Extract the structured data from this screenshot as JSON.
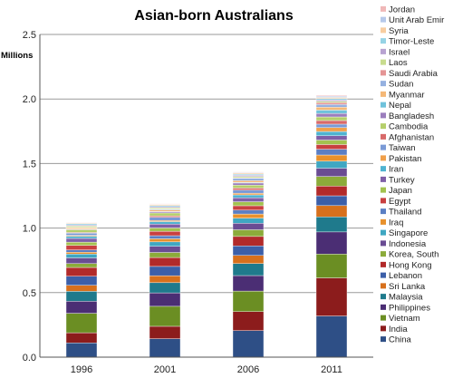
{
  "chart_data": {
    "type": "bar",
    "stacked": true,
    "title": "Asian-born Australians",
    "ylabel": "Millions",
    "xlabel": "",
    "ylim": [
      0,
      2.5
    ],
    "yticks": [
      "0.0",
      "0.5",
      "1.0",
      "1.5",
      "2.0",
      "2.5"
    ],
    "grid": true,
    "legend_position": "right",
    "categories": [
      "1996",
      "2001",
      "2006",
      "2011"
    ],
    "series": [
      {
        "name": "China",
        "color": "#2e4f86",
        "values": [
          0.111,
          0.143,
          0.206,
          0.319
        ]
      },
      {
        "name": "India",
        "color": "#8c1c1c",
        "values": [
          0.078,
          0.096,
          0.147,
          0.295
        ]
      },
      {
        "name": "Vietnam",
        "color": "#6b8e23",
        "values": [
          0.151,
          0.155,
          0.159,
          0.185
        ]
      },
      {
        "name": "Philippines",
        "color": "#4b2e74",
        "values": [
          0.093,
          0.104,
          0.12,
          0.171
        ]
      },
      {
        "name": "Malaysia",
        "color": "#1f7a8c",
        "values": [
          0.077,
          0.079,
          0.093,
          0.117
        ]
      },
      {
        "name": "Sri Lanka",
        "color": "#d7701c",
        "values": [
          0.047,
          0.054,
          0.063,
          0.087
        ]
      },
      {
        "name": "Lebanon",
        "color": "#3c5fa8",
        "values": [
          0.07,
          0.072,
          0.074,
          0.076
        ]
      },
      {
        "name": "Hong Kong",
        "color": "#b22a2a",
        "values": [
          0.068,
          0.069,
          0.073,
          0.075
        ]
      },
      {
        "name": "Korea, South",
        "color": "#8cab3a",
        "values": [
          0.03,
          0.039,
          0.052,
          0.075
        ]
      },
      {
        "name": "Indonesia",
        "color": "#6a4c93",
        "values": [
          0.044,
          0.048,
          0.05,
          0.064
        ]
      },
      {
        "name": "Singapore",
        "color": "#3fa7c2",
        "values": [
          0.03,
          0.034,
          0.04,
          0.054
        ]
      },
      {
        "name": "Iraq",
        "color": "#e8912c",
        "values": [
          0.014,
          0.024,
          0.032,
          0.048
        ]
      },
      {
        "name": "Thailand",
        "color": "#5b7fc4",
        "values": [
          0.018,
          0.024,
          0.03,
          0.045
        ]
      },
      {
        "name": "Egypt",
        "color": "#c94040",
        "values": [
          0.035,
          0.034,
          0.034,
          0.036
        ]
      },
      {
        "name": "Japan",
        "color": "#a3c24f",
        "values": [
          0.025,
          0.026,
          0.031,
          0.035
        ]
      },
      {
        "name": "Turkey",
        "color": "#7f5fa8",
        "values": [
          0.029,
          0.03,
          0.031,
          0.033
        ]
      },
      {
        "name": "Iran",
        "color": "#4fb3d1",
        "values": [
          0.017,
          0.019,
          0.022,
          0.033
        ]
      },
      {
        "name": "Pakistan",
        "color": "#f0a04b",
        "values": [
          0.007,
          0.009,
          0.013,
          0.03
        ]
      },
      {
        "name": "Taiwan",
        "color": "#7a9ad6",
        "values": [
          0.017,
          0.025,
          0.024,
          0.027
        ]
      },
      {
        "name": "Afghanistan",
        "color": "#d86a6a",
        "values": [
          0.005,
          0.011,
          0.016,
          0.028
        ]
      },
      {
        "name": "Cambodia",
        "color": "#b5cf6b",
        "values": [
          0.021,
          0.022,
          0.023,
          0.028
        ]
      },
      {
        "name": "Bangladesh",
        "color": "#9b7ebd",
        "values": [
          0.005,
          0.01,
          0.016,
          0.027
        ]
      },
      {
        "name": "Nepal",
        "color": "#6fc2db",
        "values": [
          0.001,
          0.002,
          0.005,
          0.026
        ]
      },
      {
        "name": "Myanmar",
        "color": "#f5b877",
        "values": [
          0.01,
          0.012,
          0.013,
          0.022
        ]
      },
      {
        "name": "Sudan",
        "color": "#95b1e0",
        "values": [
          0.001,
          0.005,
          0.019,
          0.021
        ]
      },
      {
        "name": "Saudi Arabia",
        "color": "#e59595",
        "values": [
          0.002,
          0.002,
          0.004,
          0.015
        ]
      },
      {
        "name": "Laos",
        "color": "#c8dc8e",
        "values": [
          0.01,
          0.01,
          0.01,
          0.011
        ]
      },
      {
        "name": "Israel",
        "color": "#b8a3d1",
        "values": [
          0.008,
          0.008,
          0.009,
          0.01
        ]
      },
      {
        "name": "Timor-Leste",
        "color": "#96d3e5",
        "values": [
          0.009,
          0.009,
          0.009,
          0.01
        ]
      },
      {
        "name": "Syria",
        "color": "#f8cda0",
        "values": [
          0.007,
          0.008,
          0.008,
          0.009
        ]
      },
      {
        "name": "Unit Arab Emir",
        "color": "#b6c9ea",
        "values": [
          0.001,
          0.002,
          0.004,
          0.009
        ]
      },
      {
        "name": "Jordan",
        "color": "#f0b8b8",
        "values": [
          0.004,
          0.004,
          0.005,
          0.006
        ]
      }
    ]
  }
}
